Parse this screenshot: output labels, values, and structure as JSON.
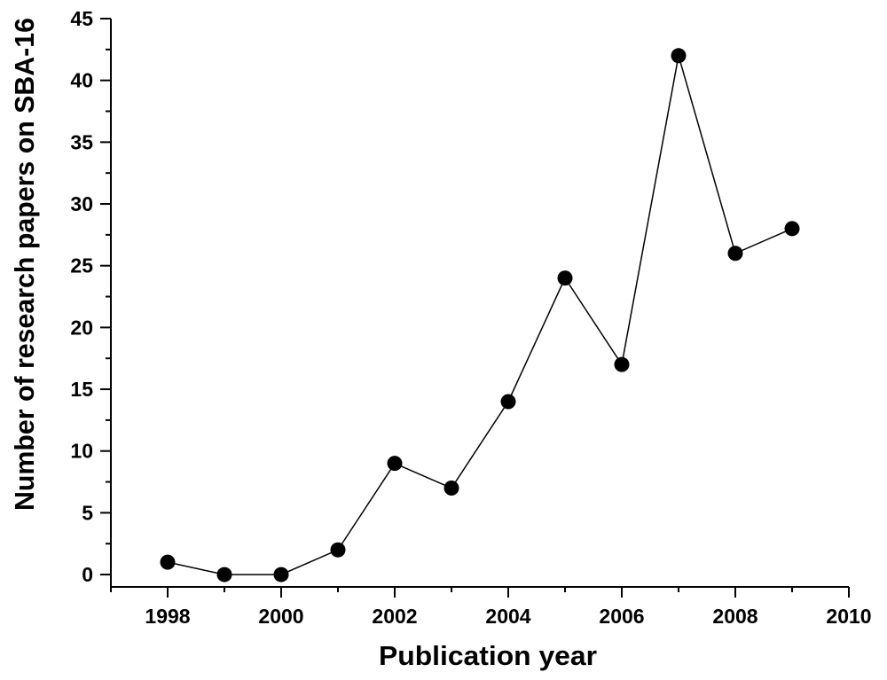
{
  "chart_data": {
    "type": "line",
    "xlabel": "Publication year",
    "ylabel": "Number of research papers on SBA-16",
    "xlim": [
      1997,
      2010
    ],
    "ylim": [
      -1,
      45
    ],
    "x_ticks": [
      "1998",
      "2000",
      "2002",
      "2004",
      "2006",
      "2008",
      "2010"
    ],
    "y_ticks": [
      "0",
      "5",
      "10",
      "15",
      "20",
      "25",
      "30",
      "35",
      "40",
      "45"
    ],
    "grid": false,
    "markers": "filled-circle",
    "colors": {
      "line": "#000000",
      "marker": "#000000"
    },
    "x": [
      1998,
      1999,
      2000,
      2001,
      2002,
      2003,
      2004,
      2005,
      2006,
      2007,
      2008,
      2009
    ],
    "y": [
      1,
      0,
      0,
      2,
      9,
      7,
      14,
      24,
      17,
      42,
      26,
      28
    ]
  }
}
